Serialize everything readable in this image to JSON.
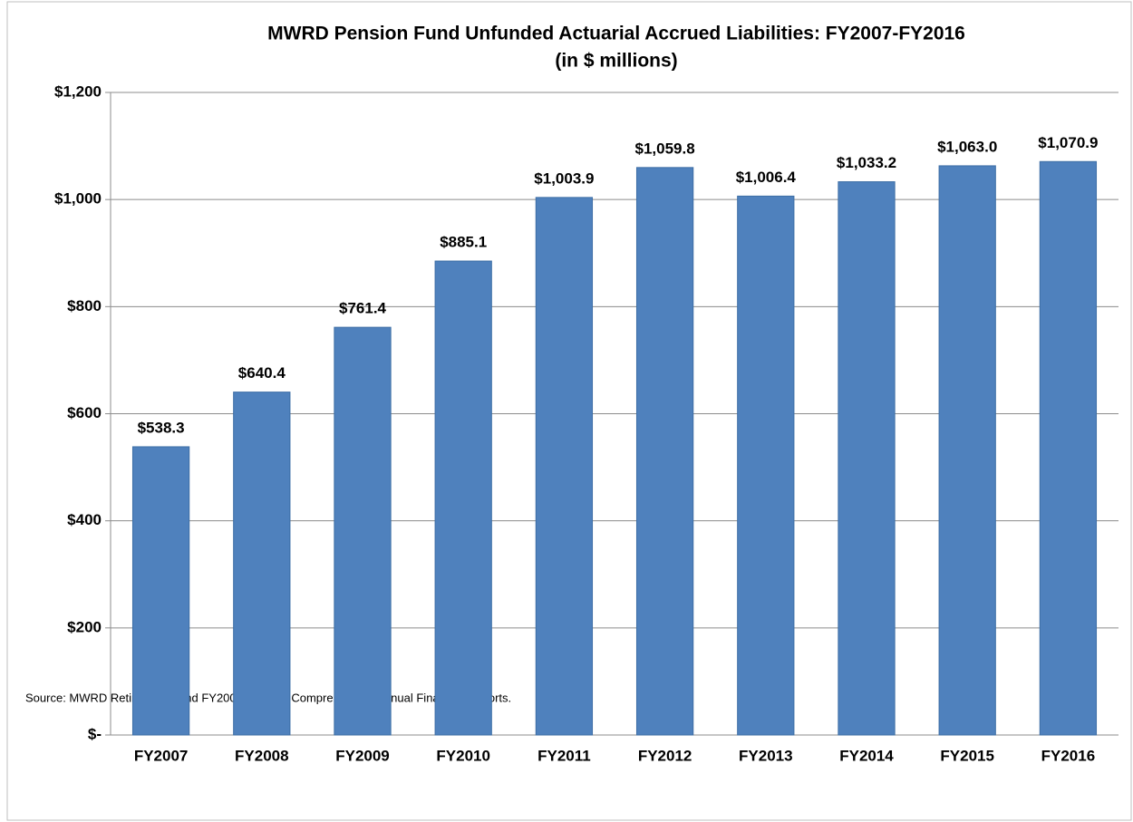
{
  "chart_data": {
    "type": "bar",
    "title": "MWRD Pension Fund Unfunded Actuarial Accrued Liabilities: FY2007-FY2016",
    "subtitle": "(in $ millions)",
    "categories": [
      "FY2007",
      "FY2008",
      "FY2009",
      "FY2010",
      "FY2011",
      "FY2012",
      "FY2013",
      "FY2014",
      "FY2015",
      "FY2016"
    ],
    "values": [
      538.3,
      640.4,
      761.4,
      885.1,
      1003.9,
      1059.8,
      1006.4,
      1033.2,
      1063.0,
      1070.9
    ],
    "value_labels": [
      "$538.3",
      "$640.4",
      "$761.4",
      "$885.1",
      "$1,003.9",
      "$1,059.8",
      "$1,006.4",
      "$1,033.2",
      "$1,063.0",
      "$1,070.9"
    ],
    "color": "#4f81bd",
    "ylim": [
      0,
      1200
    ],
    "yticks": [
      {
        "value": 0,
        "label": "$-"
      },
      {
        "value": 200,
        "label": "$200"
      },
      {
        "value": 400,
        "label": "$400"
      },
      {
        "value": 600,
        "label": "$600"
      },
      {
        "value": 800,
        "label": "$800"
      },
      {
        "value": 1000,
        "label": "$1,000"
      },
      {
        "value": 1200,
        "label": "$1,200"
      }
    ],
    "grid": true,
    "note": "Source: MWRD Retirement Fund FY2007-FY2016 Comprehensive Annual Financial Reports."
  }
}
